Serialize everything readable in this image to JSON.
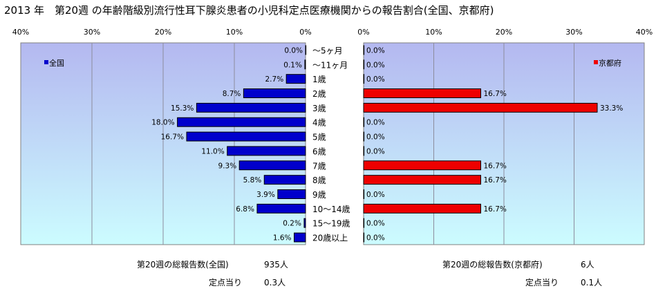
{
  "title": "2013 年　第20週 の年齢階級別流行性耳下腺炎患者の小児科定点医療機関からの報告割合(全国、京都府)",
  "chart_data": {
    "type": "bar",
    "orientation": "horizontal-butterfly",
    "categories": [
      "～5ヶ月",
      "～11ヶ月",
      "1歳",
      "2歳",
      "3歳",
      "4歳",
      "5歳",
      "6歳",
      "7歳",
      "8歳",
      "9歳",
      "10～14歳",
      "15～19歳",
      "20歳以上"
    ],
    "series": [
      {
        "name": "全国",
        "values": [
          0.0,
          0.1,
          2.7,
          8.7,
          15.3,
          18.0,
          16.7,
          11.0,
          9.3,
          5.8,
          3.9,
          6.8,
          0.2,
          1.6
        ],
        "labels": [
          "0.0%",
          "0.1%",
          "2.7%",
          "8.7%",
          "15.3%",
          "18.0%",
          "16.7%",
          "11.0%",
          "9.3%",
          "5.8%",
          "3.9%",
          "6.8%",
          "0.2%",
          "1.6%"
        ],
        "color": "#0000cc"
      },
      {
        "name": "京都府",
        "values": [
          0.0,
          0.0,
          0.0,
          16.7,
          33.3,
          0.0,
          0.0,
          0.0,
          16.7,
          16.7,
          0.0,
          16.7,
          0.0,
          0.0
        ],
        "labels": [
          "0.0%",
          "0.0%",
          "0.0%",
          "16.7%",
          "33.3%",
          "0.0%",
          "0.0%",
          "0.0%",
          "16.7%",
          "16.7%",
          "0.0%",
          "16.7%",
          "0.0%",
          "0.0%"
        ],
        "color": "#ee0000"
      }
    ],
    "xlim": [
      0,
      40
    ],
    "ticks": [
      0,
      10,
      20,
      30,
      40
    ],
    "tick_labels_left": [
      "40%",
      "30%",
      "20%",
      "10%",
      "0%"
    ],
    "tick_labels_right": [
      "0%",
      "10%",
      "20%",
      "30%",
      "40%"
    ],
    "grid": true,
    "legend_left": "top-left",
    "legend_right": "top-right"
  },
  "footer": {
    "national_total_label": "第20週の総報告数(全国)",
    "national_total_value": "935人",
    "national_per_label": "定点当り",
    "national_per_value": "0.3人",
    "kyoto_total_label": "第20週の総報告数(京都府)",
    "kyoto_total_value": "6人",
    "kyoto_per_label": "定点当り",
    "kyoto_per_value": "0.1人"
  },
  "colors": {
    "plot_bg_top": "#b4b8f0",
    "plot_bg_bottom": "#ccfcff",
    "grid": "#8c8c9c"
  }
}
